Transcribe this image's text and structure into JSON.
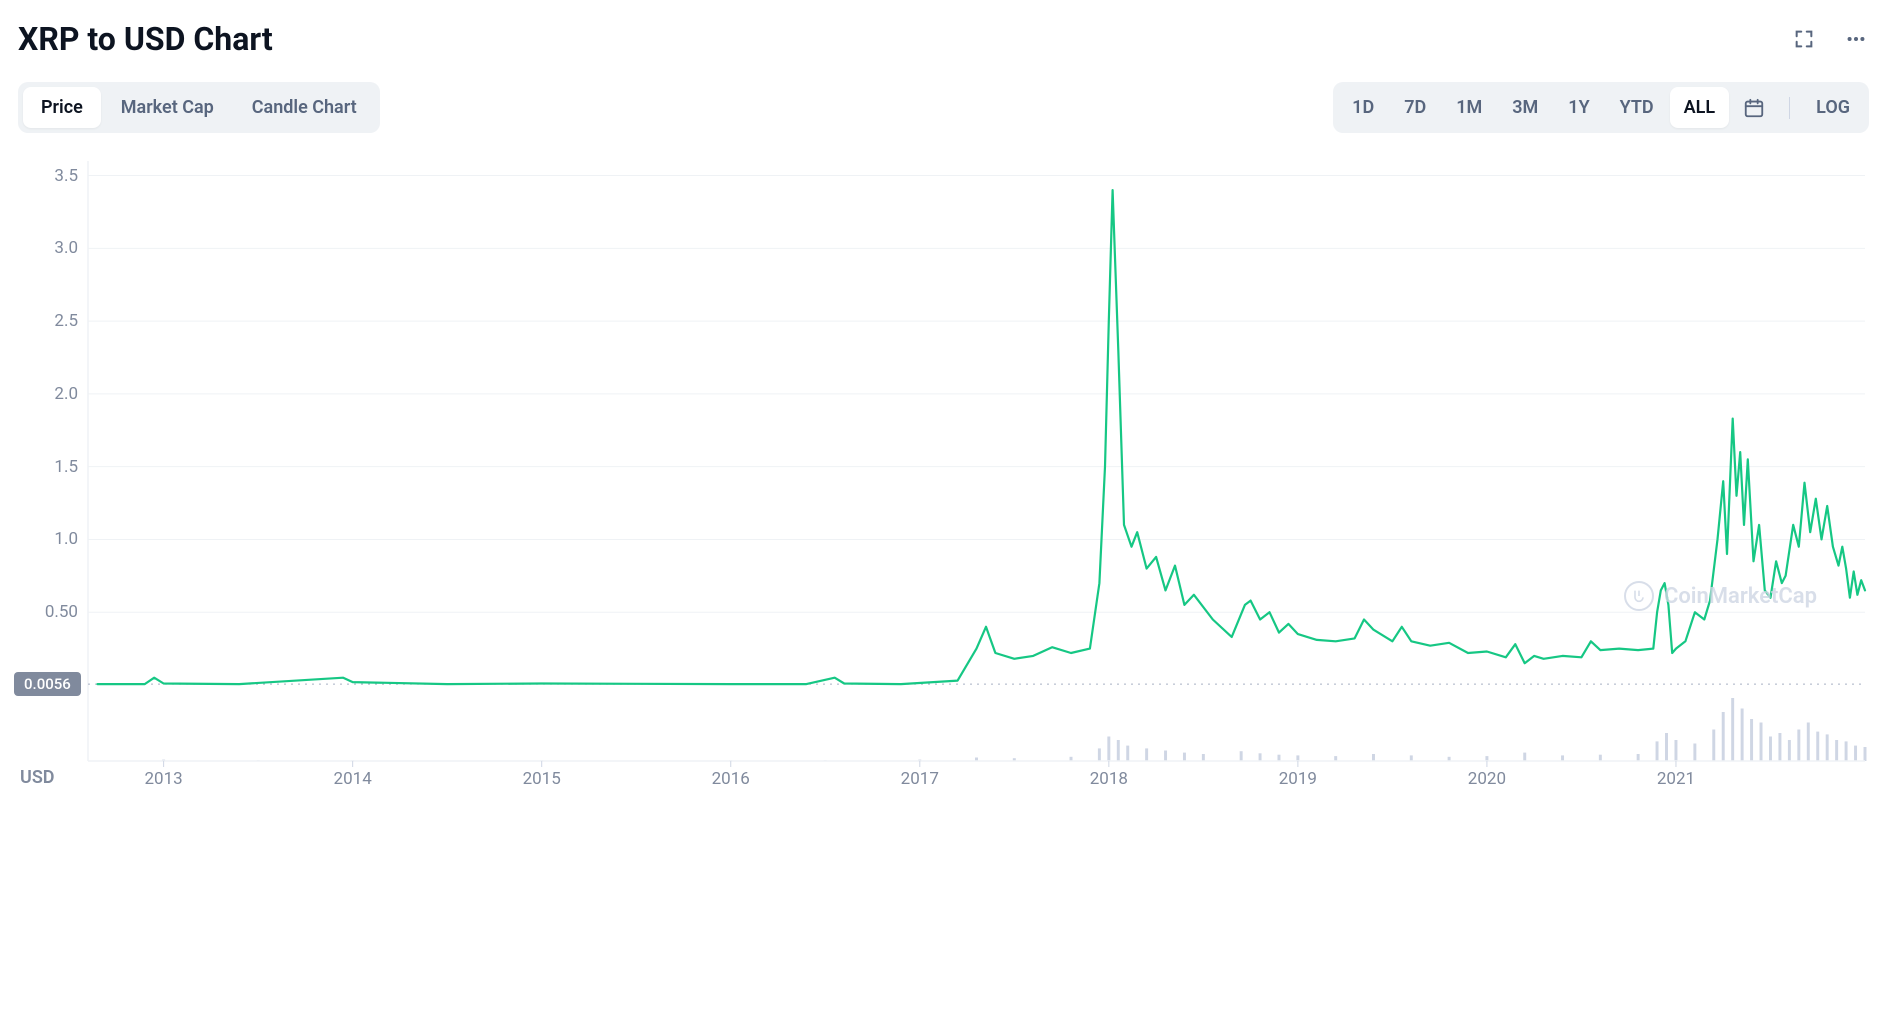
{
  "header": {
    "title": "XRP to USD Chart"
  },
  "view_tabs": {
    "items": [
      "Price",
      "Market Cap",
      "Candle Chart"
    ],
    "active_index": 0
  },
  "range_tabs": {
    "items": [
      "1D",
      "7D",
      "1M",
      "3M",
      "1Y",
      "YTD",
      "ALL"
    ],
    "active_index": 6,
    "log_label": "LOG"
  },
  "watermark": "CoinMarketCap",
  "currency_label": "USD",
  "chart": {
    "type": "line-with-volume",
    "background_color": "#ffffff",
    "line_color": "#16c784",
    "line_width": 2.2,
    "volume_color": "#cfd6e4",
    "grid_color": "#eff2f5",
    "axis_line_color": "#eff2f5",
    "dotted_baseline_color": "#a6b0c3",
    "axis_label_color": "#808a9d",
    "axis_label_fontsize": 17,
    "x_domain": [
      2012.6,
      2022.0
    ],
    "y_domain": [
      0,
      3.6
    ],
    "y_ticks": [
      0.5,
      1.0,
      1.5,
      2.0,
      2.5,
      3.0,
      3.5
    ],
    "y_tick_labels": [
      "0.50",
      "1.0",
      "1.5",
      "2.0",
      "2.5",
      "3.0",
      "3.5"
    ],
    "x_ticks": [
      2013,
      2014,
      2015,
      2016,
      2017,
      2018,
      2019,
      2020,
      2021
    ],
    "x_tick_labels": [
      "2013",
      "2014",
      "2015",
      "2016",
      "2017",
      "2018",
      "2019",
      "2020",
      "2021"
    ],
    "baseline_value": 0.0056,
    "baseline_label": "0.0056",
    "price_series": [
      [
        2012.65,
        0.006
      ],
      [
        2012.9,
        0.006
      ],
      [
        2012.95,
        0.05
      ],
      [
        2013.0,
        0.01
      ],
      [
        2013.4,
        0.006
      ],
      [
        2013.95,
        0.05
      ],
      [
        2014.0,
        0.02
      ],
      [
        2014.5,
        0.006
      ],
      [
        2015.0,
        0.01
      ],
      [
        2015.5,
        0.008
      ],
      [
        2016.0,
        0.006
      ],
      [
        2016.4,
        0.006
      ],
      [
        2016.55,
        0.05
      ],
      [
        2016.6,
        0.01
      ],
      [
        2016.9,
        0.006
      ],
      [
        2017.2,
        0.03
      ],
      [
        2017.3,
        0.25
      ],
      [
        2017.35,
        0.4
      ],
      [
        2017.4,
        0.22
      ],
      [
        2017.5,
        0.18
      ],
      [
        2017.6,
        0.2
      ],
      [
        2017.7,
        0.26
      ],
      [
        2017.8,
        0.22
      ],
      [
        2017.9,
        0.25
      ],
      [
        2017.95,
        0.7
      ],
      [
        2017.98,
        1.5
      ],
      [
        2018.0,
        2.5
      ],
      [
        2018.02,
        3.4
      ],
      [
        2018.05,
        2.3
      ],
      [
        2018.08,
        1.1
      ],
      [
        2018.12,
        0.95
      ],
      [
        2018.15,
        1.05
      ],
      [
        2018.2,
        0.8
      ],
      [
        2018.25,
        0.88
      ],
      [
        2018.3,
        0.65
      ],
      [
        2018.35,
        0.82
      ],
      [
        2018.4,
        0.55
      ],
      [
        2018.45,
        0.62
      ],
      [
        2018.55,
        0.45
      ],
      [
        2018.65,
        0.33
      ],
      [
        2018.72,
        0.55
      ],
      [
        2018.75,
        0.58
      ],
      [
        2018.8,
        0.45
      ],
      [
        2018.85,
        0.5
      ],
      [
        2018.9,
        0.36
      ],
      [
        2018.95,
        0.42
      ],
      [
        2019.0,
        0.35
      ],
      [
        2019.1,
        0.31
      ],
      [
        2019.2,
        0.3
      ],
      [
        2019.3,
        0.32
      ],
      [
        2019.35,
        0.45
      ],
      [
        2019.4,
        0.38
      ],
      [
        2019.5,
        0.3
      ],
      [
        2019.55,
        0.4
      ],
      [
        2019.6,
        0.3
      ],
      [
        2019.7,
        0.27
      ],
      [
        2019.8,
        0.29
      ],
      [
        2019.9,
        0.22
      ],
      [
        2020.0,
        0.23
      ],
      [
        2020.1,
        0.19
      ],
      [
        2020.15,
        0.28
      ],
      [
        2020.2,
        0.15
      ],
      [
        2020.25,
        0.2
      ],
      [
        2020.3,
        0.18
      ],
      [
        2020.4,
        0.2
      ],
      [
        2020.5,
        0.19
      ],
      [
        2020.55,
        0.3
      ],
      [
        2020.6,
        0.24
      ],
      [
        2020.7,
        0.25
      ],
      [
        2020.8,
        0.24
      ],
      [
        2020.88,
        0.25
      ],
      [
        2020.9,
        0.5
      ],
      [
        2020.92,
        0.65
      ],
      [
        2020.94,
        0.7
      ],
      [
        2020.96,
        0.55
      ],
      [
        2020.98,
        0.22
      ],
      [
        2021.0,
        0.25
      ],
      [
        2021.05,
        0.3
      ],
      [
        2021.1,
        0.5
      ],
      [
        2021.15,
        0.45
      ],
      [
        2021.18,
        0.58
      ],
      [
        2021.22,
        1.0
      ],
      [
        2021.25,
        1.4
      ],
      [
        2021.27,
        0.9
      ],
      [
        2021.3,
        1.83
      ],
      [
        2021.32,
        1.3
      ],
      [
        2021.34,
        1.6
      ],
      [
        2021.36,
        1.1
      ],
      [
        2021.38,
        1.55
      ],
      [
        2021.41,
        0.85
      ],
      [
        2021.44,
        1.1
      ],
      [
        2021.47,
        0.65
      ],
      [
        2021.5,
        0.6
      ],
      [
        2021.53,
        0.85
      ],
      [
        2021.56,
        0.7
      ],
      [
        2021.58,
        0.75
      ],
      [
        2021.62,
        1.1
      ],
      [
        2021.65,
        0.95
      ],
      [
        2021.68,
        1.39
      ],
      [
        2021.71,
        1.05
      ],
      [
        2021.74,
        1.28
      ],
      [
        2021.77,
        1.0
      ],
      [
        2021.8,
        1.23
      ],
      [
        2021.83,
        0.95
      ],
      [
        2021.86,
        0.82
      ],
      [
        2021.88,
        0.95
      ],
      [
        2021.9,
        0.8
      ],
      [
        2021.92,
        0.6
      ],
      [
        2021.94,
        0.78
      ],
      [
        2021.96,
        0.62
      ],
      [
        2021.98,
        0.72
      ],
      [
        2022.0,
        0.65
      ]
    ],
    "volume_series": [
      [
        2012.7,
        0
      ],
      [
        2013.0,
        2
      ],
      [
        2013.5,
        1
      ],
      [
        2014.0,
        1
      ],
      [
        2014.5,
        0
      ],
      [
        2015.0,
        1
      ],
      [
        2015.5,
        0
      ],
      [
        2016.0,
        1
      ],
      [
        2016.5,
        1
      ],
      [
        2017.0,
        2
      ],
      [
        2017.3,
        5
      ],
      [
        2017.5,
        4
      ],
      [
        2017.8,
        6
      ],
      [
        2017.95,
        18
      ],
      [
        2018.0,
        35
      ],
      [
        2018.05,
        30
      ],
      [
        2018.1,
        22
      ],
      [
        2018.2,
        18
      ],
      [
        2018.3,
        15
      ],
      [
        2018.4,
        12
      ],
      [
        2018.5,
        10
      ],
      [
        2018.7,
        14
      ],
      [
        2018.8,
        11
      ],
      [
        2018.9,
        9
      ],
      [
        2019.0,
        8
      ],
      [
        2019.2,
        7
      ],
      [
        2019.4,
        10
      ],
      [
        2019.6,
        8
      ],
      [
        2019.8,
        6
      ],
      [
        2020.0,
        7
      ],
      [
        2020.2,
        12
      ],
      [
        2020.4,
        8
      ],
      [
        2020.6,
        9
      ],
      [
        2020.8,
        10
      ],
      [
        2020.9,
        28
      ],
      [
        2020.95,
        40
      ],
      [
        2021.0,
        30
      ],
      [
        2021.1,
        25
      ],
      [
        2021.2,
        45
      ],
      [
        2021.25,
        70
      ],
      [
        2021.3,
        90
      ],
      [
        2021.35,
        75
      ],
      [
        2021.4,
        60
      ],
      [
        2021.45,
        55
      ],
      [
        2021.5,
        35
      ],
      [
        2021.55,
        40
      ],
      [
        2021.6,
        30
      ],
      [
        2021.65,
        45
      ],
      [
        2021.7,
        55
      ],
      [
        2021.75,
        42
      ],
      [
        2021.8,
        38
      ],
      [
        2021.85,
        30
      ],
      [
        2021.9,
        28
      ],
      [
        2021.95,
        22
      ],
      [
        2022.0,
        20
      ]
    ],
    "volume_max": 100
  }
}
